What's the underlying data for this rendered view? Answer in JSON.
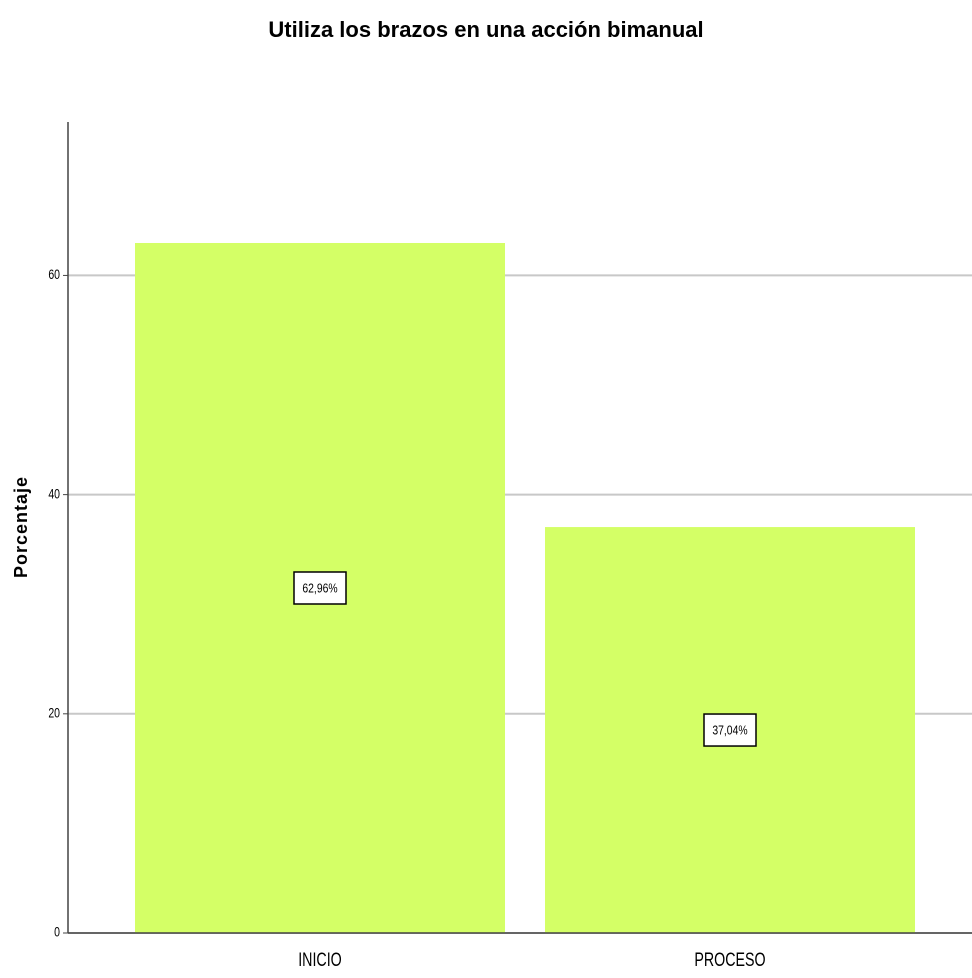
{
  "chart_data": {
    "type": "bar",
    "title": "Utiliza los brazos en una acción bimanual",
    "y_label": "Porcentaje",
    "categories": [
      "INICIO",
      "PROCESO"
    ],
    "values": [
      62.96,
      37.04
    ],
    "value_labels": [
      "62,96%",
      "37,04%"
    ],
    "color": "#d4ff66",
    "ylim": [
      0,
      74
    ],
    "yticks": [
      0,
      20,
      40,
      60
    ],
    "grid": true
  }
}
